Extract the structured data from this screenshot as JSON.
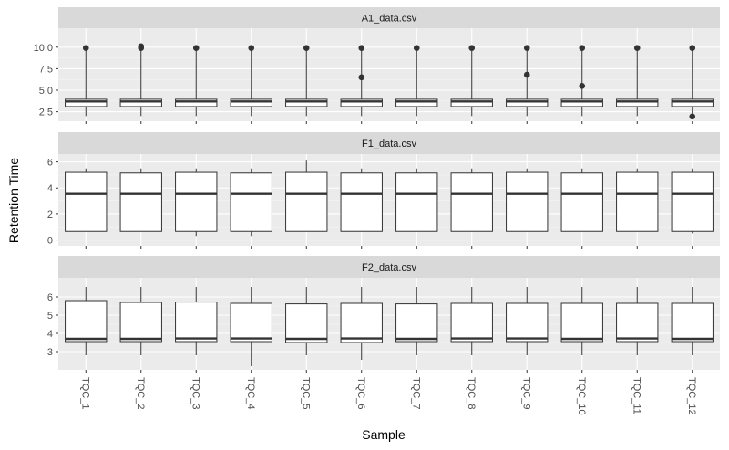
{
  "chart_data": {
    "type": "boxplot",
    "xlabel": "Sample",
    "ylabel": "Retention Time",
    "categories": [
      "TQC_1",
      "TQC_2",
      "TQC_3",
      "TQC_4",
      "TQC_5",
      "TQC_6",
      "TQC_7",
      "TQC_8",
      "TQC_9",
      "TQC_10",
      "TQC_11",
      "TQC_12"
    ],
    "panels": [
      {
        "title": "A1_data.csv",
        "ylim": [
          1.4,
          12.2
        ],
        "yticks": [
          2.5,
          5.0,
          7.5,
          10.0
        ],
        "ytick_labels": [
          "2.5",
          "5.0",
          "7.5",
          "10.0"
        ],
        "boxes": [
          {
            "min": 2.0,
            "q1": 3.1,
            "median": 3.7,
            "q3": 3.95,
            "max": 9.9,
            "outliers": [
              9.9
            ]
          },
          {
            "min": 2.0,
            "q1": 3.1,
            "median": 3.7,
            "q3": 3.95,
            "max": 9.9,
            "outliers": [
              9.9,
              10.1
            ]
          },
          {
            "min": 2.0,
            "q1": 3.1,
            "median": 3.7,
            "q3": 3.95,
            "max": 9.9,
            "outliers": [
              9.9
            ]
          },
          {
            "min": 2.0,
            "q1": 3.1,
            "median": 3.7,
            "q3": 3.95,
            "max": 9.9,
            "outliers": [
              9.9
            ]
          },
          {
            "min": 2.0,
            "q1": 3.1,
            "median": 3.7,
            "q3": 3.95,
            "max": 9.9,
            "outliers": [
              9.9
            ]
          },
          {
            "min": 2.0,
            "q1": 3.1,
            "median": 3.7,
            "q3": 3.95,
            "max": 9.9,
            "outliers": [
              9.9,
              6.5
            ]
          },
          {
            "min": 2.0,
            "q1": 3.1,
            "median": 3.7,
            "q3": 3.95,
            "max": 9.9,
            "outliers": [
              9.9
            ]
          },
          {
            "min": 2.0,
            "q1": 3.1,
            "median": 3.7,
            "q3": 3.95,
            "max": 9.9,
            "outliers": [
              9.9
            ]
          },
          {
            "min": 2.0,
            "q1": 3.1,
            "median": 3.7,
            "q3": 3.95,
            "max": 9.9,
            "outliers": [
              9.9,
              6.8
            ]
          },
          {
            "min": 2.0,
            "q1": 3.1,
            "median": 3.7,
            "q3": 3.95,
            "max": 9.9,
            "outliers": [
              9.9,
              5.5
            ]
          },
          {
            "min": 2.0,
            "q1": 3.1,
            "median": 3.7,
            "q3": 3.95,
            "max": 9.9,
            "outliers": [
              9.9
            ]
          },
          {
            "min": 2.3,
            "q1": 3.1,
            "median": 3.7,
            "q3": 3.95,
            "max": 9.9,
            "outliers": [
              9.9,
              1.95
            ]
          }
        ]
      },
      {
        "title": "F1_data.csv",
        "ylim": [
          -0.45,
          6.6
        ],
        "yticks": [
          0,
          2,
          4,
          6
        ],
        "ytick_labels": [
          "0",
          "2",
          "4",
          "6"
        ],
        "boxes": [
          {
            "min": 0.65,
            "q1": 0.65,
            "median": 3.55,
            "q3": 5.2,
            "max": 5.5,
            "outliers": []
          },
          {
            "min": 0.65,
            "q1": 0.65,
            "median": 3.55,
            "q3": 5.15,
            "max": 5.5,
            "outliers": []
          },
          {
            "min": 0.3,
            "q1": 0.65,
            "median": 3.55,
            "q3": 5.2,
            "max": 5.5,
            "outliers": []
          },
          {
            "min": 0.3,
            "q1": 0.65,
            "median": 3.55,
            "q3": 5.15,
            "max": 5.5,
            "outliers": []
          },
          {
            "min": 0.65,
            "q1": 0.65,
            "median": 3.55,
            "q3": 5.2,
            "max": 6.1,
            "outliers": []
          },
          {
            "min": 0.65,
            "q1": 0.65,
            "median": 3.55,
            "q3": 5.15,
            "max": 5.5,
            "outliers": []
          },
          {
            "min": 0.65,
            "q1": 0.65,
            "median": 3.55,
            "q3": 5.15,
            "max": 5.5,
            "outliers": []
          },
          {
            "min": 0.65,
            "q1": 0.65,
            "median": 3.55,
            "q3": 5.15,
            "max": 5.5,
            "outliers": []
          },
          {
            "min": 0.65,
            "q1": 0.65,
            "median": 3.55,
            "q3": 5.2,
            "max": 5.5,
            "outliers": []
          },
          {
            "min": 0.65,
            "q1": 0.65,
            "median": 3.55,
            "q3": 5.15,
            "max": 5.5,
            "outliers": []
          },
          {
            "min": 0.65,
            "q1": 0.65,
            "median": 3.55,
            "q3": 5.2,
            "max": 5.5,
            "outliers": []
          },
          {
            "min": 0.5,
            "q1": 0.65,
            "median": 3.55,
            "q3": 5.2,
            "max": 5.5,
            "outliers": []
          }
        ]
      },
      {
        "title": "F2_data.csv",
        "ylim": [
          2.0,
          7.05
        ],
        "yticks": [
          3,
          4,
          5,
          6
        ],
        "ytick_labels": [
          "3",
          "4",
          "5",
          "6"
        ],
        "boxes": [
          {
            "min": 2.8,
            "q1": 3.55,
            "median": 3.7,
            "q3": 5.8,
            "max": 6.55,
            "outliers": []
          },
          {
            "min": 2.8,
            "q1": 3.55,
            "median": 3.7,
            "q3": 5.7,
            "max": 6.55,
            "outliers": []
          },
          {
            "min": 2.8,
            "q1": 3.55,
            "median": 3.72,
            "q3": 5.72,
            "max": 6.55,
            "outliers": []
          },
          {
            "min": 2.2,
            "q1": 3.55,
            "median": 3.72,
            "q3": 5.65,
            "max": 6.55,
            "outliers": []
          },
          {
            "min": 2.8,
            "q1": 3.5,
            "median": 3.7,
            "q3": 5.62,
            "max": 6.55,
            "outliers": []
          },
          {
            "min": 2.55,
            "q1": 3.5,
            "median": 3.72,
            "q3": 5.65,
            "max": 6.55,
            "outliers": []
          },
          {
            "min": 2.8,
            "q1": 3.55,
            "median": 3.7,
            "q3": 5.62,
            "max": 6.55,
            "outliers": []
          },
          {
            "min": 2.8,
            "q1": 3.55,
            "median": 3.72,
            "q3": 5.65,
            "max": 6.55,
            "outliers": []
          },
          {
            "min": 2.8,
            "q1": 3.55,
            "median": 3.72,
            "q3": 5.65,
            "max": 6.55,
            "outliers": []
          },
          {
            "min": 2.8,
            "q1": 3.55,
            "median": 3.7,
            "q3": 5.65,
            "max": 6.55,
            "outliers": []
          },
          {
            "min": 2.8,
            "q1": 3.55,
            "median": 3.72,
            "q3": 5.65,
            "max": 6.55,
            "outliers": []
          },
          {
            "min": 2.8,
            "q1": 3.55,
            "median": 3.7,
            "q3": 5.65,
            "max": 6.55,
            "outliers": []
          }
        ]
      }
    ],
    "grid": true,
    "colors": {
      "panel_background": "#ebebeb",
      "strip_background": "#d9d9d9",
      "grid_major": "#ffffff",
      "box_fill": "#ffffff",
      "box_line": "#333333",
      "outlier": "#333333"
    }
  }
}
